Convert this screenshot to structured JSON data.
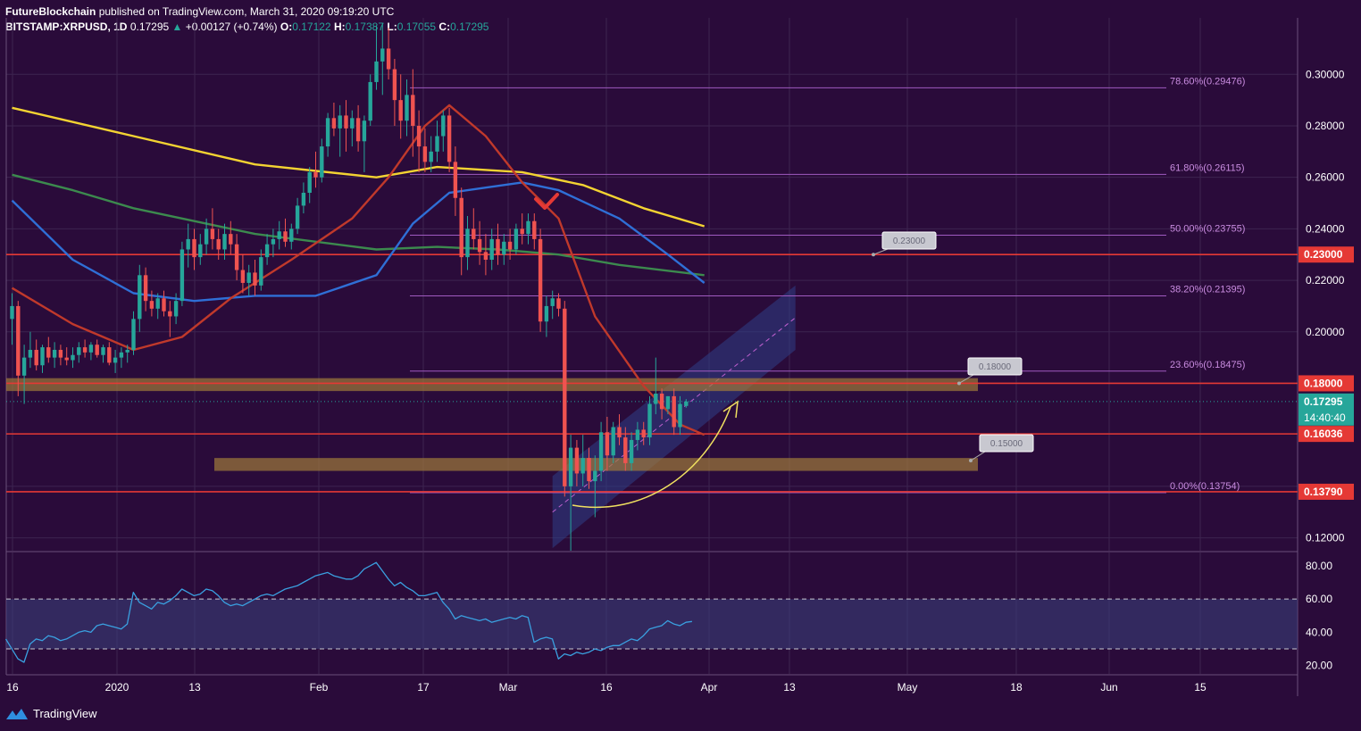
{
  "header": {
    "publisher": "FutureBlockchain",
    "published_text": "published on TradingView.com, March 31, 2020 09:19:20 UTC",
    "symbol": "BITSTAMP:XRPUSD",
    "interval": ", 1D",
    "last": "0.17295",
    "change_arrow": "▲",
    "change": "+0.00127 (+0.74%)",
    "ohlc": [
      {
        "k": "O:",
        "v": "0.17122"
      },
      {
        "k": "H:",
        "v": "0.17387"
      },
      {
        "k": "L:",
        "v": "0.17055"
      },
      {
        "k": "C:",
        "v": "0.17295"
      }
    ]
  },
  "footer": {
    "brand": "TradingView",
    "logo_icon": "tradingview-logo-icon"
  },
  "colors": {
    "background": "#2a0b3a",
    "grid": "#3d2450",
    "up": "#26a69a",
    "down": "#ef5350",
    "ma_red": "#c0392b",
    "ma_blue": "#2f6fd6",
    "ma_green": "#3c8a4e",
    "ma_yellow": "#f3d332",
    "horizontal_line": "#e53935",
    "fib": "#a05ac0",
    "rsi": "#3aa0e0",
    "channel": "#2d3f86",
    "zone": "#a07a3a",
    "arrow": "#f0e060"
  },
  "chart_data": [
    {
      "type": "candlestick",
      "title": "",
      "series_name": "XRPUSD",
      "scale": "linear",
      "ylim": [
        0.115,
        0.315
      ],
      "y_ticks": [
        "0.30000",
        "0.28000",
        "0.26000",
        "0.24000",
        "0.22000",
        "0.20000",
        "0.12000"
      ],
      "x_ticks": [
        "16",
        "2020",
        "13",
        "Feb",
        "17",
        "Mar",
        "16",
        "Apr",
        "13",
        "May",
        "18",
        "Jun",
        "15"
      ],
      "candles": [
        [
          0.205,
          0.215,
          0.195,
          0.21
        ],
        [
          0.21,
          0.212,
          0.175,
          0.183
        ],
        [
          0.183,
          0.195,
          0.172,
          0.19
        ],
        [
          0.19,
          0.2,
          0.186,
          0.193
        ],
        [
          0.193,
          0.197,
          0.185,
          0.187
        ],
        [
          0.187,
          0.195,
          0.184,
          0.194
        ],
        [
          0.194,
          0.198,
          0.188,
          0.19
        ],
        [
          0.19,
          0.196,
          0.186,
          0.193
        ],
        [
          0.193,
          0.195,
          0.187,
          0.19
        ],
        [
          0.19,
          0.194,
          0.187,
          0.189
        ],
        [
          0.189,
          0.194,
          0.186,
          0.191
        ],
        [
          0.191,
          0.196,
          0.188,
          0.194
        ],
        [
          0.194,
          0.197,
          0.19,
          0.192
        ],
        [
          0.192,
          0.196,
          0.189,
          0.195
        ],
        [
          0.195,
          0.197,
          0.19,
          0.191
        ],
        [
          0.191,
          0.195,
          0.188,
          0.194
        ],
        [
          0.194,
          0.196,
          0.187,
          0.188
        ],
        [
          0.188,
          0.193,
          0.184,
          0.19
        ],
        [
          0.19,
          0.194,
          0.186,
          0.192
        ],
        [
          0.192,
          0.195,
          0.188,
          0.193
        ],
        [
          0.193,
          0.208,
          0.191,
          0.205
        ],
        [
          0.205,
          0.226,
          0.2,
          0.222
        ],
        [
          0.222,
          0.225,
          0.208,
          0.212
        ],
        [
          0.212,
          0.216,
          0.206,
          0.209
        ],
        [
          0.209,
          0.215,
          0.205,
          0.213
        ],
        [
          0.213,
          0.216,
          0.206,
          0.208
        ],
        [
          0.208,
          0.212,
          0.198,
          0.206
        ],
        [
          0.206,
          0.215,
          0.203,
          0.212
        ],
        [
          0.212,
          0.235,
          0.21,
          0.232
        ],
        [
          0.232,
          0.242,
          0.225,
          0.236
        ],
        [
          0.236,
          0.24,
          0.224,
          0.229
        ],
        [
          0.229,
          0.238,
          0.226,
          0.234
        ],
        [
          0.234,
          0.244,
          0.23,
          0.24
        ],
        [
          0.24,
          0.248,
          0.232,
          0.236
        ],
        [
          0.236,
          0.24,
          0.228,
          0.232
        ],
        [
          0.232,
          0.242,
          0.228,
          0.238
        ],
        [
          0.238,
          0.243,
          0.23,
          0.234
        ],
        [
          0.234,
          0.238,
          0.22,
          0.224
        ],
        [
          0.224,
          0.23,
          0.215,
          0.219
        ],
        [
          0.219,
          0.226,
          0.214,
          0.223
        ],
        [
          0.223,
          0.228,
          0.214,
          0.218
        ],
        [
          0.218,
          0.232,
          0.216,
          0.229
        ],
        [
          0.229,
          0.238,
          0.226,
          0.234
        ],
        [
          0.234,
          0.24,
          0.229,
          0.236
        ],
        [
          0.236,
          0.243,
          0.232,
          0.239
        ],
        [
          0.239,
          0.244,
          0.233,
          0.235
        ],
        [
          0.235,
          0.242,
          0.232,
          0.24
        ],
        [
          0.24,
          0.252,
          0.238,
          0.249
        ],
        [
          0.249,
          0.258,
          0.246,
          0.254
        ],
        [
          0.254,
          0.264,
          0.25,
          0.262
        ],
        [
          0.262,
          0.27,
          0.256,
          0.26
        ],
        [
          0.26,
          0.275,
          0.258,
          0.272
        ],
        [
          0.272,
          0.285,
          0.268,
          0.283
        ],
        [
          0.283,
          0.289,
          0.276,
          0.279
        ],
        [
          0.279,
          0.288,
          0.268,
          0.284
        ],
        [
          0.284,
          0.29,
          0.27,
          0.279
        ],
        [
          0.279,
          0.286,
          0.272,
          0.283
        ],
        [
          0.283,
          0.288,
          0.27,
          0.274
        ],
        [
          0.274,
          0.284,
          0.262,
          0.282
        ],
        [
          0.282,
          0.3,
          0.28,
          0.297
        ],
        [
          0.297,
          0.319,
          0.294,
          0.305
        ],
        [
          0.305,
          0.32,
          0.292,
          0.31
        ],
        [
          0.31,
          0.318,
          0.298,
          0.302
        ],
        [
          0.302,
          0.306,
          0.28,
          0.29
        ],
        [
          0.29,
          0.3,
          0.275,
          0.282
        ],
        [
          0.282,
          0.298,
          0.276,
          0.292
        ],
        [
          0.292,
          0.302,
          0.268,
          0.28
        ],
        [
          0.28,
          0.286,
          0.262,
          0.272
        ],
        [
          0.272,
          0.279,
          0.262,
          0.266
        ],
        [
          0.266,
          0.276,
          0.262,
          0.27
        ],
        [
          0.27,
          0.282,
          0.266,
          0.276
        ],
        [
          0.276,
          0.286,
          0.27,
          0.284
        ],
        [
          0.284,
          0.287,
          0.262,
          0.266
        ],
        [
          0.266,
          0.272,
          0.245,
          0.252
        ],
        [
          0.252,
          0.256,
          0.222,
          0.229
        ],
        [
          0.229,
          0.245,
          0.224,
          0.24
        ],
        [
          0.24,
          0.248,
          0.232,
          0.236
        ],
        [
          0.236,
          0.243,
          0.226,
          0.231
        ],
        [
          0.231,
          0.238,
          0.222,
          0.228
        ],
        [
          0.228,
          0.24,
          0.224,
          0.236
        ],
        [
          0.236,
          0.242,
          0.226,
          0.23
        ],
        [
          0.23,
          0.238,
          0.226,
          0.235
        ],
        [
          0.235,
          0.24,
          0.228,
          0.232
        ],
        [
          0.232,
          0.242,
          0.23,
          0.24
        ],
        [
          0.24,
          0.246,
          0.234,
          0.238
        ],
        [
          0.238,
          0.246,
          0.234,
          0.243
        ],
        [
          0.243,
          0.246,
          0.232,
          0.236
        ],
        [
          0.236,
          0.24,
          0.2,
          0.204
        ],
        [
          0.204,
          0.214,
          0.198,
          0.21
        ],
        [
          0.21,
          0.216,
          0.205,
          0.213
        ],
        [
          0.213,
          0.215,
          0.206,
          0.209
        ],
        [
          0.209,
          0.212,
          0.136,
          0.14
        ],
        [
          0.14,
          0.16,
          0.115,
          0.155
        ],
        [
          0.155,
          0.158,
          0.14,
          0.145
        ],
        [
          0.145,
          0.16,
          0.14,
          0.151
        ],
        [
          0.151,
          0.155,
          0.139,
          0.142
        ],
        [
          0.142,
          0.152,
          0.128,
          0.146
        ],
        [
          0.146,
          0.165,
          0.142,
          0.161
        ],
        [
          0.161,
          0.167,
          0.146,
          0.152
        ],
        [
          0.152,
          0.165,
          0.149,
          0.163
        ],
        [
          0.163,
          0.168,
          0.156,
          0.159
        ],
        [
          0.159,
          0.163,
          0.146,
          0.149
        ],
        [
          0.149,
          0.161,
          0.146,
          0.158
        ],
        [
          0.158,
          0.165,
          0.154,
          0.162
        ],
        [
          0.162,
          0.165,
          0.156,
          0.159
        ],
        [
          0.159,
          0.175,
          0.156,
          0.172
        ],
        [
          0.172,
          0.19,
          0.168,
          0.176
        ],
        [
          0.176,
          0.178,
          0.166,
          0.17
        ],
        [
          0.17,
          0.175,
          0.168,
          0.175
        ],
        [
          0.175,
          0.178,
          0.16,
          0.163
        ],
        [
          0.163,
          0.175,
          0.16,
          0.172
        ],
        [
          0.17122,
          0.17387,
          0.17055,
          0.17295
        ]
      ],
      "moving_averages": [
        {
          "color_key": "ma_yellow",
          "values": [
            [
              0,
              0.287
            ],
            [
              20,
              0.276
            ],
            [
              40,
              0.265
            ],
            [
              60,
              0.26
            ],
            [
              70,
              0.264
            ],
            [
              84,
              0.262
            ],
            [
              94,
              0.257
            ],
            [
              104,
              0.248
            ],
            [
              114,
              0.241
            ]
          ]
        },
        {
          "color_key": "ma_green",
          "values": [
            [
              0,
              0.261
            ],
            [
              10,
              0.255
            ],
            [
              20,
              0.248
            ],
            [
              40,
              0.238
            ],
            [
              60,
              0.232
            ],
            [
              70,
              0.233
            ],
            [
              80,
              0.232
            ],
            [
              90,
              0.23
            ],
            [
              100,
              0.226
            ],
            [
              114,
              0.222
            ]
          ]
        },
        {
          "color_key": "ma_blue",
          "values": [
            [
              0,
              0.251
            ],
            [
              10,
              0.228
            ],
            [
              20,
              0.215
            ],
            [
              30,
              0.212
            ],
            [
              40,
              0.214
            ],
            [
              50,
              0.214
            ],
            [
              60,
              0.222
            ],
            [
              66,
              0.242
            ],
            [
              72,
              0.254
            ],
            [
              78,
              0.256
            ],
            [
              84,
              0.258
            ],
            [
              90,
              0.255
            ],
            [
              100,
              0.244
            ],
            [
              108,
              0.23
            ],
            [
              114,
              0.219
            ]
          ]
        },
        {
          "color_key": "ma_red",
          "values": [
            [
              0,
              0.217
            ],
            [
              10,
              0.203
            ],
            [
              20,
              0.193
            ],
            [
              28,
              0.198
            ],
            [
              36,
              0.213
            ],
            [
              46,
              0.228
            ],
            [
              56,
              0.244
            ],
            [
              62,
              0.26
            ],
            [
              68,
              0.28
            ],
            [
              72,
              0.288
            ],
            [
              78,
              0.276
            ],
            [
              84,
              0.258
            ],
            [
              90,
              0.244
            ],
            [
              96,
              0.206
            ],
            [
              104,
              0.179
            ],
            [
              110,
              0.164
            ],
            [
              114,
              0.16
            ]
          ]
        }
      ],
      "horizontal_levels": [
        {
          "value": 0.23,
          "label": "0.23000"
        },
        {
          "value": 0.18,
          "label": "0.18000"
        },
        {
          "value": 0.16036,
          "label": "0.16036"
        },
        {
          "value": 0.1379,
          "label": "0.13790"
        }
      ],
      "last_price": {
        "value": 0.17295,
        "label": "0.17295",
        "countdown": "14:40:40"
      },
      "fib_levels": [
        {
          "value": 0.29476,
          "label": "78.60%(0.29476)"
        },
        {
          "value": 0.26115,
          "label": "61.80%(0.26115)"
        },
        {
          "value": 0.23755,
          "label": "50.00%(0.23755)"
        },
        {
          "value": 0.21395,
          "label": "38.20%(0.21395)"
        },
        {
          "value": 0.18475,
          "label": "23.60%(0.18475)"
        },
        {
          "value": 0.13754,
          "label": "0.00%(0.13754)"
        }
      ],
      "callouts": [
        {
          "label": "0.23000",
          "value": 0.23
        },
        {
          "label": "0.18000",
          "value": 0.18
        },
        {
          "label": "0.15000",
          "value": 0.15
        }
      ],
      "zones": [
        {
          "low": 0.177,
          "high": 0.182
        },
        {
          "low": 0.146,
          "high": 0.151
        }
      ],
      "channel": {
        "start": [
          89,
          0.116,
          0.144
        ],
        "end": [
          129,
          0.193,
          0.218
        ]
      }
    },
    {
      "type": "line",
      "title": "",
      "series_name": "RSI",
      "ylim": [
        15,
        88
      ],
      "y_ticks": [
        "80.00",
        "60.00",
        "40.00",
        "20.00"
      ],
      "bands": [
        30,
        60
      ],
      "values": [
        36,
        30,
        24,
        22,
        33,
        36,
        35,
        38,
        37,
        35,
        36,
        38,
        40,
        41,
        40,
        44,
        45,
        44,
        43,
        42,
        45,
        64,
        58,
        56,
        54,
        58,
        57,
        59,
        62,
        66,
        64,
        62,
        63,
        66,
        65,
        62,
        58,
        56,
        57,
        56,
        58,
        60,
        62,
        63,
        62,
        64,
        66,
        67,
        68,
        70,
        72,
        74,
        75,
        76,
        74,
        73,
        72,
        72,
        74,
        78,
        80,
        82,
        77,
        72,
        68,
        70,
        67,
        65,
        62,
        62,
        63,
        64,
        58,
        54,
        48,
        50,
        49,
        48,
        47,
        48,
        46,
        47,
        48,
        49,
        48,
        50,
        49,
        34,
        36,
        37,
        36,
        24,
        27,
        26,
        28,
        27,
        28,
        30,
        29,
        31,
        32,
        32,
        34,
        36,
        35,
        38,
        42,
        43,
        44,
        47,
        45,
        44,
        46,
        46.5
      ]
    }
  ]
}
